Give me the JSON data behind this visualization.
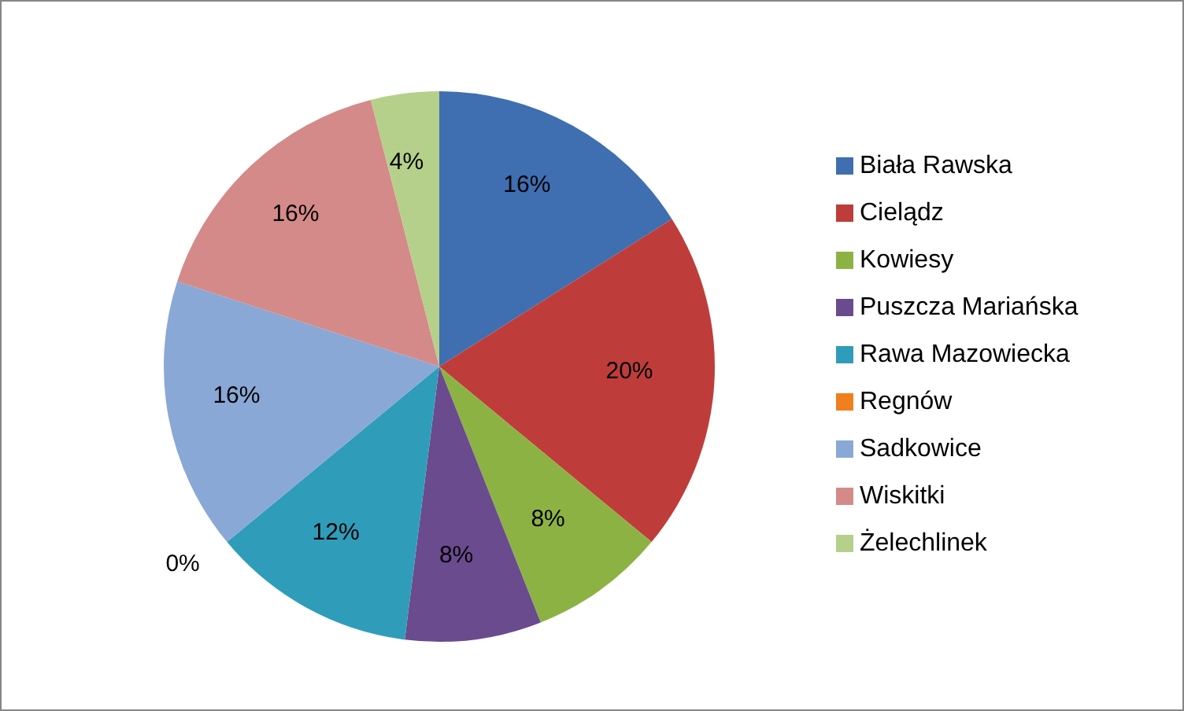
{
  "chart_data": {
    "type": "pie",
    "categories": [
      "Biała Rawska",
      "Cielądz",
      "Kowiesy",
      "Puszcza Mariańska",
      "Rawa Mazowiecka",
      "Regnów",
      "Sadkowice",
      "Wiskitki",
      "Żelechlinek"
    ],
    "values": [
      16,
      20,
      8,
      8,
      12,
      0,
      16,
      16,
      4
    ],
    "colors": [
      "#3f6fb0",
      "#be3d3a",
      "#8db244",
      "#6a4b8e",
      "#2f9db9",
      "#f07f1e",
      "#8aa8d6",
      "#d48a88",
      "#b5d08a"
    ],
    "value_labels": [
      "16%",
      "20%",
      "8%",
      "8%",
      "12%",
      "0%",
      "16%",
      "16%",
      "4%"
    ],
    "legend": "right"
  }
}
